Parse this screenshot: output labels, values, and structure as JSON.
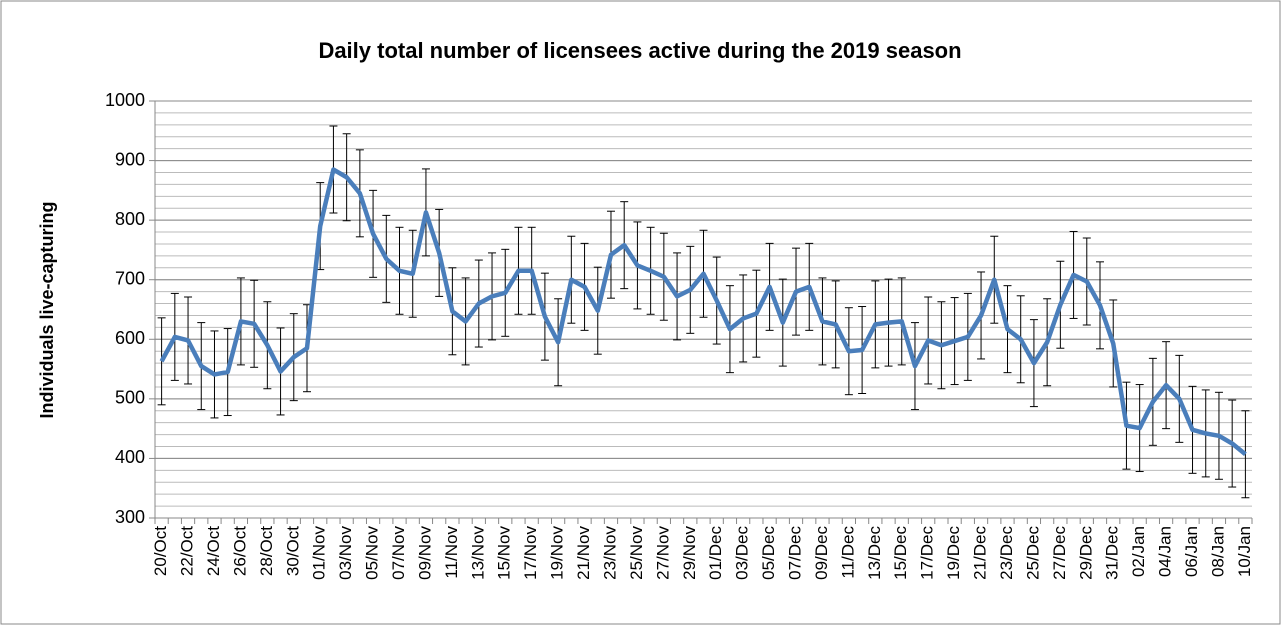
{
  "chart_data": {
    "type": "line",
    "title": "Daily total number of licensees active during the 2019 season",
    "y_label": "Individuals live-capturing",
    "categories": [
      "20/Oct",
      null,
      "22/Oct",
      null,
      "24/Oct",
      null,
      "26/Oct",
      null,
      "28/Oct",
      null,
      "30/Oct",
      null,
      "01/Nov",
      null,
      "03/Nov",
      null,
      "05/Nov",
      null,
      "07/Nov",
      null,
      "09/Nov",
      null,
      "11/Nov",
      null,
      "13/Nov",
      null,
      "15/Nov",
      null,
      "17/Nov",
      null,
      "19/Nov",
      null,
      "21/Nov",
      null,
      "23/Nov",
      null,
      "25/Nov",
      null,
      "27/Nov",
      null,
      "29/Nov",
      null,
      "01/Dec",
      null,
      "03/Dec",
      null,
      "05/Dec",
      null,
      "07/Dec",
      null,
      "09/Dec",
      null,
      "11/Dec",
      null,
      "13/Dec",
      null,
      "15/Dec",
      null,
      "17/Dec",
      null,
      "19/Dec",
      null,
      "21/Dec",
      null,
      "23/Dec",
      null,
      "25/Dec",
      null,
      "27/Dec",
      null,
      "29/Dec",
      null,
      "31/Dec",
      null,
      "02/Jan",
      null,
      "04/Jan",
      null,
      "06/Jan",
      null,
      "08/Jan",
      null,
      "10/Jan"
    ],
    "series": [
      {
        "name": "Individuals live-capturing",
        "color": "#4a7ebb",
        "error": 73,
        "values": [
          563,
          604,
          598,
          555,
          541,
          545,
          630,
          626,
          590,
          546,
          570,
          585,
          790,
          885,
          872,
          845,
          777,
          735,
          715,
          710,
          813,
          745,
          647,
          630,
          660,
          672,
          678,
          715,
          715,
          638,
          595,
          700,
          688,
          648,
          742,
          758,
          724,
          715,
          705,
          672,
          683,
          710,
          665,
          617,
          635,
          643,
          688,
          628,
          680,
          688,
          630,
          625,
          580,
          582,
          625,
          628,
          630,
          555,
          598,
          590,
          597,
          604,
          640,
          700,
          617,
          600,
          560,
          595,
          658,
          708,
          697,
          657,
          593,
          455,
          451,
          495,
          523,
          500,
          448,
          442,
          438,
          425,
          407
        ]
      }
    ],
    "ylim": [
      300,
      1000
    ],
    "yticks": [
      300,
      400,
      500,
      600,
      700,
      800,
      900,
      1000
    ],
    "grid": true,
    "minor_grid": 20
  }
}
